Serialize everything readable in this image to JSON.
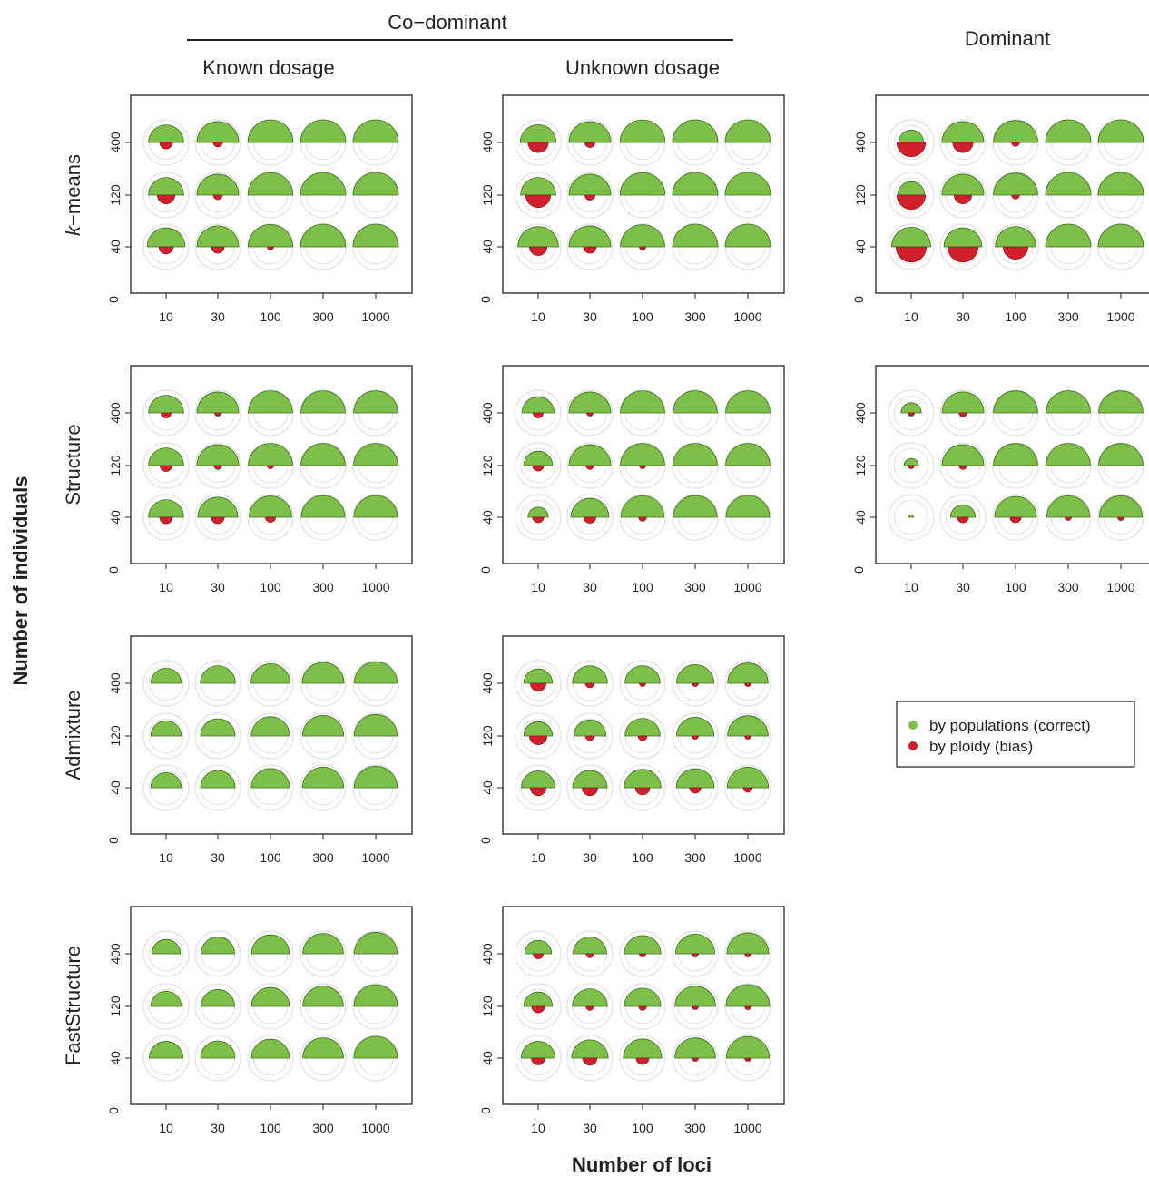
{
  "header": {
    "codominant": "Co−dominant",
    "known": "Known dosage",
    "unknown": "Unknown dosage",
    "dominant": "Dominant"
  },
  "axes": {
    "ylabel": "Number of individuals",
    "xlabel": "Number of loci",
    "zero_label": "0"
  },
  "rows": [
    "k−means",
    "Structure",
    "Admixture",
    "FastStructure"
  ],
  "legend": {
    "correct": "by populations (correct)",
    "bias": "by ploidy (bias)"
  },
  "colors": {
    "correct": "#7ebf4a",
    "bias": "#d21f2c",
    "outline": "#e2e2e2",
    "correct_stroke": "#3c6e1c"
  },
  "chart_data": {
    "type": "scatter",
    "description_fields": "value pairs are [correct, bias] fractions on a 0-1 scale per cell",
    "x_ticks": [
      "10",
      "30",
      "100",
      "300",
      "1000"
    ],
    "y_ticks": [
      "40",
      "120",
      "400"
    ],
    "panels": [
      {
        "row": "k−means",
        "column": "Known dosage",
        "values": {
          "400": [
            [
              0.6,
              0.08
            ],
            [
              0.85,
              0.04
            ],
            [
              0.99,
              0.0
            ],
            [
              1.0,
              0.0
            ],
            [
              1.0,
              0.0
            ]
          ],
          "120": [
            [
              0.6,
              0.15
            ],
            [
              0.85,
              0.04
            ],
            [
              0.98,
              0.0
            ],
            [
              1.0,
              0.0
            ],
            [
              1.0,
              0.0
            ]
          ],
          "40": [
            [
              0.7,
              0.1
            ],
            [
              0.85,
              0.08
            ],
            [
              0.97,
              0.02
            ],
            [
              1.0,
              0.0
            ],
            [
              1.0,
              0.0
            ]
          ]
        }
      },
      {
        "row": "k−means",
        "column": "Unknown dosage",
        "values": {
          "400": [
            [
              0.62,
              0.2
            ],
            [
              0.85,
              0.05
            ],
            [
              0.98,
              0.0
            ],
            [
              1.0,
              0.0
            ],
            [
              1.0,
              0.0
            ]
          ],
          "120": [
            [
              0.6,
              0.3
            ],
            [
              0.85,
              0.05
            ],
            [
              0.98,
              0.0
            ],
            [
              1.0,
              0.0
            ],
            [
              1.0,
              0.0
            ]
          ],
          "40": [
            [
              0.8,
              0.15
            ],
            [
              0.85,
              0.08
            ],
            [
              0.95,
              0.02
            ],
            [
              1.0,
              0.0
            ],
            [
              1.0,
              0.0
            ]
          ]
        }
      },
      {
        "row": "k−means",
        "column": "Dominant",
        "values": {
          "400": [
            [
              0.3,
              0.4
            ],
            [
              0.85,
              0.2
            ],
            [
              0.95,
              0.03
            ],
            [
              1.0,
              0.0
            ],
            [
              1.0,
              0.0
            ]
          ],
          "120": [
            [
              0.35,
              0.4
            ],
            [
              0.85,
              0.15
            ],
            [
              0.95,
              0.03
            ],
            [
              1.0,
              0.0
            ],
            [
              1.0,
              0.0
            ]
          ],
          "40": [
            [
              0.75,
              0.45
            ],
            [
              0.7,
              0.45
            ],
            [
              0.8,
              0.3
            ],
            [
              1.0,
              0.0
            ],
            [
              1.0,
              0.0
            ]
          ]
        }
      },
      {
        "row": "Structure",
        "column": "Known dosage",
        "values": {
          "400": [
            [
              0.6,
              0.05
            ],
            [
              0.85,
              0.02
            ],
            [
              0.95,
              0.0
            ],
            [
              0.95,
              0.0
            ],
            [
              0.95,
              0.0
            ]
          ],
          "120": [
            [
              0.6,
              0.07
            ],
            [
              0.85,
              0.03
            ],
            [
              0.95,
              0.02
            ],
            [
              0.95,
              0.0
            ],
            [
              0.95,
              0.0
            ]
          ],
          "40": [
            [
              0.6,
              0.08
            ],
            [
              0.78,
              0.08
            ],
            [
              0.88,
              0.05
            ],
            [
              0.92,
              0.0
            ],
            [
              0.92,
              0.0
            ]
          ]
        }
      },
      {
        "row": "Structure",
        "column": "Unknown dosage",
        "values": {
          "400": [
            [
              0.5,
              0.05
            ],
            [
              0.85,
              0.02
            ],
            [
              0.95,
              0.0
            ],
            [
              0.95,
              0.0
            ],
            [
              0.95,
              0.0
            ]
          ],
          "120": [
            [
              0.4,
              0.06
            ],
            [
              0.85,
              0.03
            ],
            [
              0.95,
              0.02
            ],
            [
              0.95,
              0.0
            ],
            [
              0.95,
              0.0
            ]
          ],
          "40": [
            [
              0.2,
              0.06
            ],
            [
              0.7,
              0.07
            ],
            [
              0.9,
              0.03
            ],
            [
              0.92,
              0.0
            ],
            [
              0.92,
              0.0
            ]
          ]
        }
      },
      {
        "row": "Structure",
        "column": "Dominant",
        "values": {
          "400": [
            [
              0.2,
              0.02
            ],
            [
              0.85,
              0.03
            ],
            [
              0.95,
              0.0
            ],
            [
              0.95,
              0.0
            ],
            [
              0.95,
              0.0
            ]
          ],
          "120": [
            [
              0.1,
              0.02
            ],
            [
              0.85,
              0.03
            ],
            [
              0.95,
              0.0
            ],
            [
              0.95,
              0.0
            ],
            [
              0.95,
              0.0
            ]
          ],
          "40": [
            [
              0.01,
              0.0
            ],
            [
              0.3,
              0.06
            ],
            [
              0.85,
              0.06
            ],
            [
              0.9,
              0.02
            ],
            [
              0.9,
              0.02
            ]
          ]
        }
      },
      {
        "row": "Admixture",
        "column": "Known dosage",
        "values": {
          "400": [
            [
              0.45,
              0.0
            ],
            [
              0.6,
              0.0
            ],
            [
              0.75,
              0.0
            ],
            [
              0.85,
              0.0
            ],
            [
              0.9,
              0.0
            ]
          ],
          "120": [
            [
              0.45,
              0.0
            ],
            [
              0.58,
              0.0
            ],
            [
              0.72,
              0.0
            ],
            [
              0.82,
              0.0
            ],
            [
              0.9,
              0.0
            ]
          ],
          "40": [
            [
              0.45,
              0.0
            ],
            [
              0.58,
              0.0
            ],
            [
              0.72,
              0.0
            ],
            [
              0.82,
              0.0
            ],
            [
              0.9,
              0.0
            ]
          ]
        }
      },
      {
        "row": "Admixture",
        "column": "Unknown dosage",
        "values": {
          "400": [
            [
              0.4,
              0.12
            ],
            [
              0.6,
              0.04
            ],
            [
              0.6,
              0.02
            ],
            [
              0.68,
              0.02
            ],
            [
              0.8,
              0.02
            ]
          ],
          "120": [
            [
              0.4,
              0.15
            ],
            [
              0.5,
              0.04
            ],
            [
              0.6,
              0.04
            ],
            [
              0.68,
              0.02
            ],
            [
              0.8,
              0.02
            ]
          ],
          "40": [
            [
              0.55,
              0.12
            ],
            [
              0.58,
              0.12
            ],
            [
              0.66,
              0.1
            ],
            [
              0.7,
              0.06
            ],
            [
              0.82,
              0.04
            ]
          ]
        }
      },
      {
        "row": "FastStructure",
        "column": "Known dosage",
        "values": {
          "400": [
            [
              0.4,
              0.0
            ],
            [
              0.55,
              0.0
            ],
            [
              0.7,
              0.0
            ],
            [
              0.8,
              0.0
            ],
            [
              0.9,
              0.0
            ]
          ],
          "120": [
            [
              0.45,
              0.0
            ],
            [
              0.55,
              0.0
            ],
            [
              0.7,
              0.0
            ],
            [
              0.8,
              0.0
            ],
            [
              0.92,
              0.0
            ]
          ],
          "40": [
            [
              0.55,
              0.0
            ],
            [
              0.58,
              0.0
            ],
            [
              0.7,
              0.0
            ],
            [
              0.8,
              0.0
            ],
            [
              0.92,
              0.0
            ]
          ]
        }
      },
      {
        "row": "FastStructure",
        "column": "Unknown dosage",
        "values": {
          "400": [
            [
              0.35,
              0.05
            ],
            [
              0.55,
              0.03
            ],
            [
              0.65,
              0.02
            ],
            [
              0.75,
              0.02
            ],
            [
              0.85,
              0.02
            ]
          ],
          "120": [
            [
              0.4,
              0.08
            ],
            [
              0.6,
              0.03
            ],
            [
              0.65,
              0.03
            ],
            [
              0.8,
              0.02
            ],
            [
              0.92,
              0.02
            ]
          ],
          "40": [
            [
              0.55,
              0.09
            ],
            [
              0.65,
              0.1
            ],
            [
              0.72,
              0.08
            ],
            [
              0.8,
              0.02
            ],
            [
              0.9,
              0.02
            ]
          ]
        }
      }
    ]
  }
}
